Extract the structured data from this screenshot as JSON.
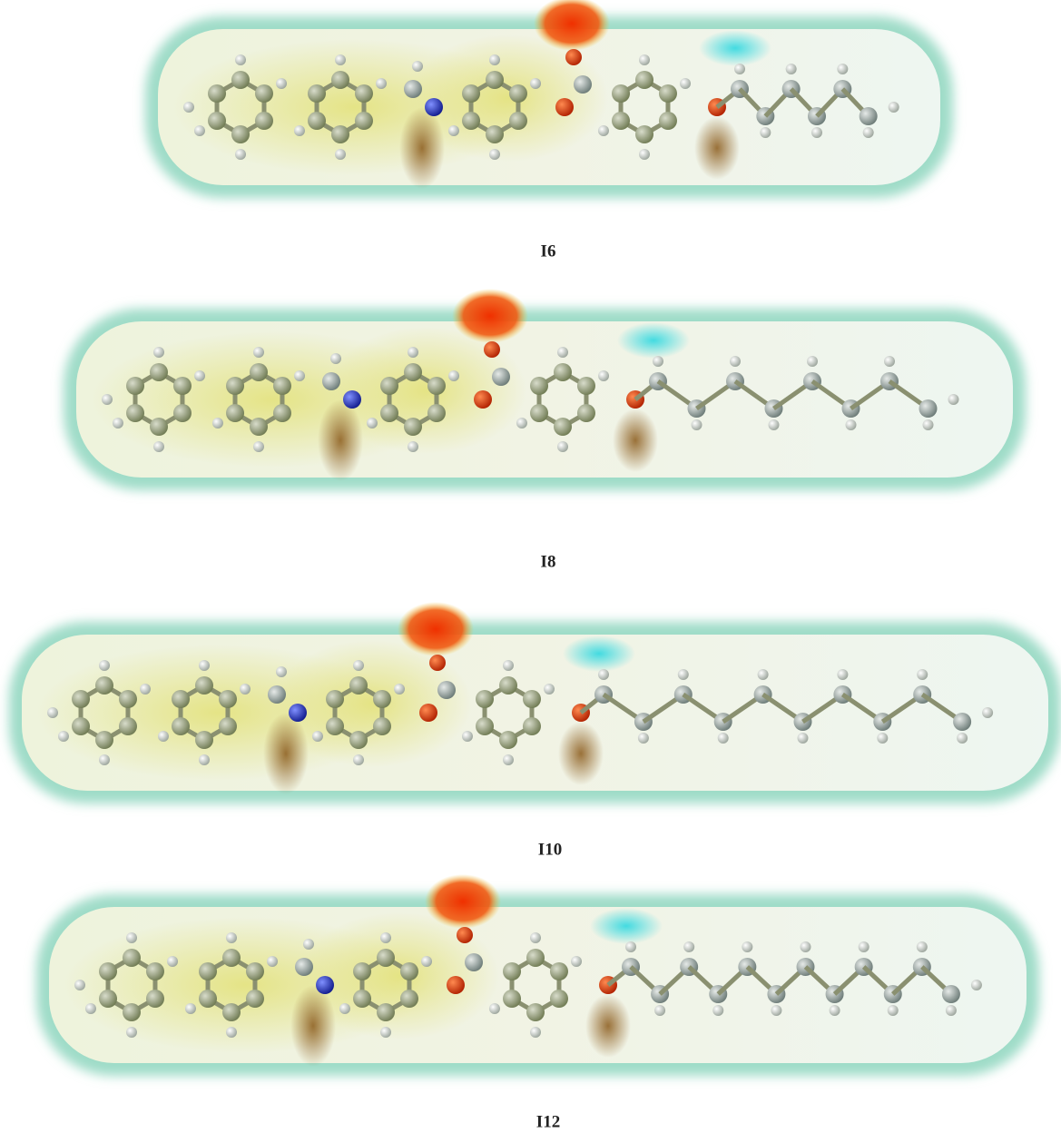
{
  "panels": [
    {
      "label": "I6"
    },
    {
      "label": "I8"
    },
    {
      "label": "I10"
    },
    {
      "label": "I12"
    }
  ]
}
